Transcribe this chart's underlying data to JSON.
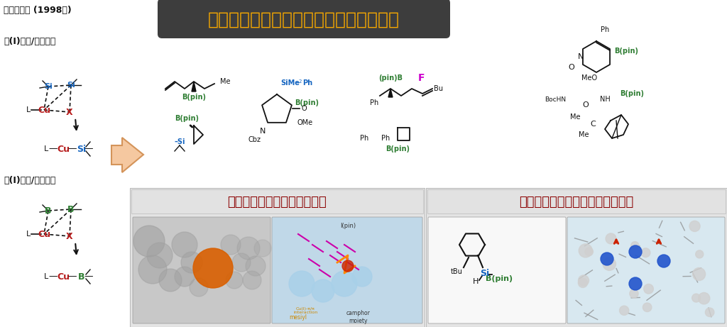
{
  "title": "有機ホウ素・ケイ素化合物の選択的合成",
  "title_bg": "#3d3d3d",
  "title_color": "#f5a800",
  "subtitle1": "量子計算による触媒デザイン",
  "subtitle2": "シリルボラン化合物の合成と応用",
  "subtitle_color": "#8b0000",
  "subtitle_bg": "#e2e2e2",
  "left_t1": "初期の発見 (1998ー)",
  "left_t2": "銅(I)触媒/ジシラン",
  "left_t3": "銅(I)触媒/ジボロン",
  "bg_color": "#ffffff",
  "si_color": "#1565c0",
  "cu_color": "#b71c1c",
  "b_color": "#2e7d32",
  "x_color": "#b71c1c",
  "black": "#111111",
  "f_color": "#cc00cc",
  "arrow_face": "#f5c8a0",
  "arrow_edge": "#d4945a"
}
